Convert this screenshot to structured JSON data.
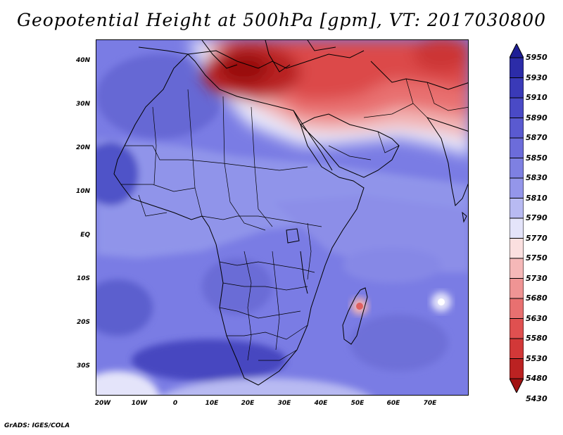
{
  "title": "Geopotential Height at 500hPa [gpm], VT: 2017030800",
  "lat_labels": [
    "40N",
    "30N",
    "20N",
    "10N",
    "EQ",
    "10S",
    "20S",
    "30S"
  ],
  "lon_labels": [
    "20W",
    "10W",
    "0",
    "10E",
    "20E",
    "30E",
    "40E",
    "50E",
    "60E",
    "70E"
  ],
  "colorbar": {
    "levels": [
      "5950",
      "5930",
      "5910",
      "5890",
      "5870",
      "5850",
      "5830",
      "5810",
      "5790",
      "5770",
      "5750",
      "5730",
      "5680",
      "5630",
      "5580",
      "5530",
      "5480",
      "5430"
    ],
    "colors": [
      "#1e1e96",
      "#2c2ca8",
      "#3a3ab8",
      "#4a4ac6",
      "#5a5ad0",
      "#6c6cda",
      "#7e80e2",
      "#9496ea",
      "#b8baf2",
      "#e4e4fa",
      "#fbe0e0",
      "#f5b8b8",
      "#ef9494",
      "#e87070",
      "#e05050",
      "#d23838",
      "#bb2222",
      "#a11212"
    ]
  },
  "credit": "GrADS: IGES/COLA"
}
